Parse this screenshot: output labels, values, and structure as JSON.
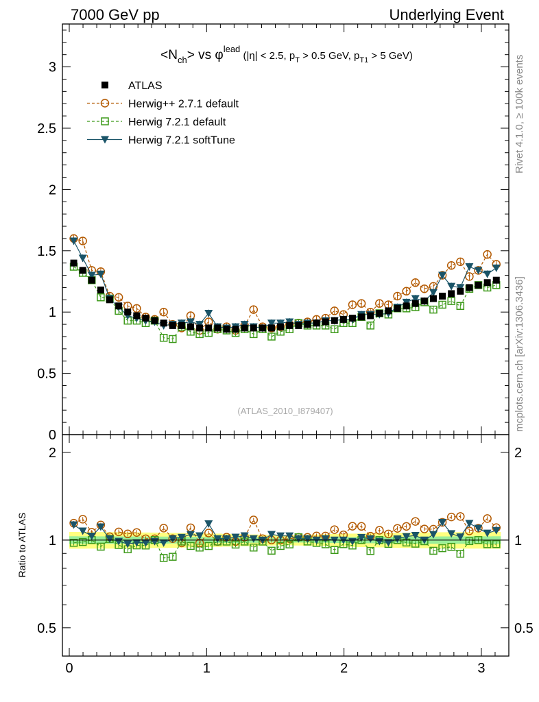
{
  "header": {
    "left": "7000 GeV pp",
    "right": "Underlying Event"
  },
  "side": {
    "right_top": "Rivet 4.1.0, ≥ 100k events",
    "right_bottom": "mcplots.cern.ch [arXiv:1306.3436]"
  },
  "chart_data": {
    "type": "scatter",
    "title": "<N_ch> vs φ^lead (|η| < 2.5, p_T > 0.5 GeV, p_T1 > 5 GeV)",
    "watermark": "(ATLAS_2010_I879407)",
    "xlim": [
      -0.05,
      3.2
    ],
    "ylim": [
      0,
      3.35
    ],
    "xticks": [
      "0",
      "1",
      "2",
      "3"
    ],
    "yticks": [
      "0.5",
      "1",
      "1.5",
      "2",
      "2.5",
      "3"
    ],
    "y0_label": "0",
    "ratio": {
      "ylabel": "Ratio to ATLAS",
      "ylim": [
        0.4,
        2.3
      ],
      "yticks": [
        "0.5",
        "1",
        "2"
      ]
    },
    "series": [
      {
        "name": "ATLAS",
        "style": "data",
        "color": "#000000",
        "x": [
          0.0327,
          0.0982,
          0.1636,
          0.2291,
          0.2945,
          0.36,
          0.4254,
          0.4909,
          0.5563,
          0.6218,
          0.6872,
          0.7527,
          0.8181,
          0.8836,
          0.949,
          1.0145,
          1.0799,
          1.1454,
          1.2108,
          1.2763,
          1.3417,
          1.4072,
          1.4726,
          1.5381,
          1.6035,
          1.669,
          1.7344,
          1.7999,
          1.8653,
          1.9308,
          1.9962,
          2.0617,
          2.1271,
          2.1926,
          2.258,
          2.3235,
          2.3889,
          2.4544,
          2.5198,
          2.5853,
          2.6507,
          2.7162,
          2.7816,
          2.8471,
          2.9125,
          2.978,
          3.0434,
          3.1089
        ],
        "values": [
          1.4,
          1.34,
          1.26,
          1.18,
          1.1,
          1.05,
          1.0,
          0.97,
          0.95,
          0.93,
          0.91,
          0.89,
          0.89,
          0.88,
          0.87,
          0.87,
          0.87,
          0.86,
          0.86,
          0.87,
          0.87,
          0.87,
          0.87,
          0.88,
          0.89,
          0.89,
          0.9,
          0.91,
          0.92,
          0.93,
          0.94,
          0.95,
          0.96,
          0.97,
          0.99,
          1.01,
          1.03,
          1.05,
          1.07,
          1.09,
          1.11,
          1.13,
          1.15,
          1.17,
          1.2,
          1.22,
          1.24,
          1.26
        ]
      },
      {
        "name": "Herwig++ 2.7.1 default",
        "style": "dashed-circle",
        "color": "#b35900",
        "values": [
          1.6,
          1.58,
          1.34,
          1.33,
          1.13,
          1.12,
          1.05,
          1.03,
          0.96,
          0.94,
          1.0,
          0.9,
          0.87,
          0.97,
          0.85,
          0.92,
          0.86,
          0.88,
          0.85,
          0.89,
          1.02,
          0.88,
          0.87,
          0.88,
          0.9,
          0.91,
          0.92,
          0.94,
          0.95,
          1.01,
          0.98,
          1.06,
          1.07,
          1.0,
          1.07,
          1.06,
          1.13,
          1.17,
          1.24,
          1.19,
          1.21,
          1.3,
          1.38,
          1.41,
          1.29,
          1.34,
          1.47,
          1.39
        ]
      },
      {
        "name": "Herwig 7.2.1 default",
        "style": "dashed-square",
        "color": "#3d9a1a",
        "values": [
          1.37,
          1.32,
          1.26,
          1.12,
          1.11,
          1.01,
          0.93,
          0.93,
          0.91,
          0.93,
          0.79,
          0.78,
          0.88,
          0.84,
          0.82,
          0.83,
          0.86,
          0.85,
          0.83,
          0.86,
          0.82,
          0.86,
          0.8,
          0.84,
          0.86,
          0.91,
          0.89,
          0.89,
          0.89,
          0.86,
          0.91,
          0.91,
          0.96,
          0.89,
          0.99,
          0.98,
          1.03,
          1.03,
          1.04,
          1.08,
          1.02,
          1.06,
          1.09,
          1.05,
          1.19,
          1.22,
          1.2,
          1.22
        ]
      },
      {
        "name": "Herwig 7.2.1 softTune",
        "style": "solid-triangle",
        "color": "#1a5468",
        "values": [
          1.58,
          1.44,
          1.3,
          1.31,
          1.11,
          1.04,
          0.97,
          0.95,
          0.93,
          0.92,
          0.89,
          0.9,
          0.91,
          0.92,
          0.9,
          0.99,
          0.88,
          0.87,
          0.88,
          0.9,
          0.88,
          0.87,
          0.91,
          0.91,
          0.92,
          0.9,
          0.91,
          0.91,
          0.93,
          0.93,
          0.94,
          0.94,
          0.98,
          0.98,
          0.98,
          0.99,
          1.04,
          1.08,
          1.11,
          1.09,
          1.16,
          1.3,
          1.21,
          1.2,
          1.37,
          1.34,
          1.31,
          1.36
        ]
      }
    ]
  }
}
